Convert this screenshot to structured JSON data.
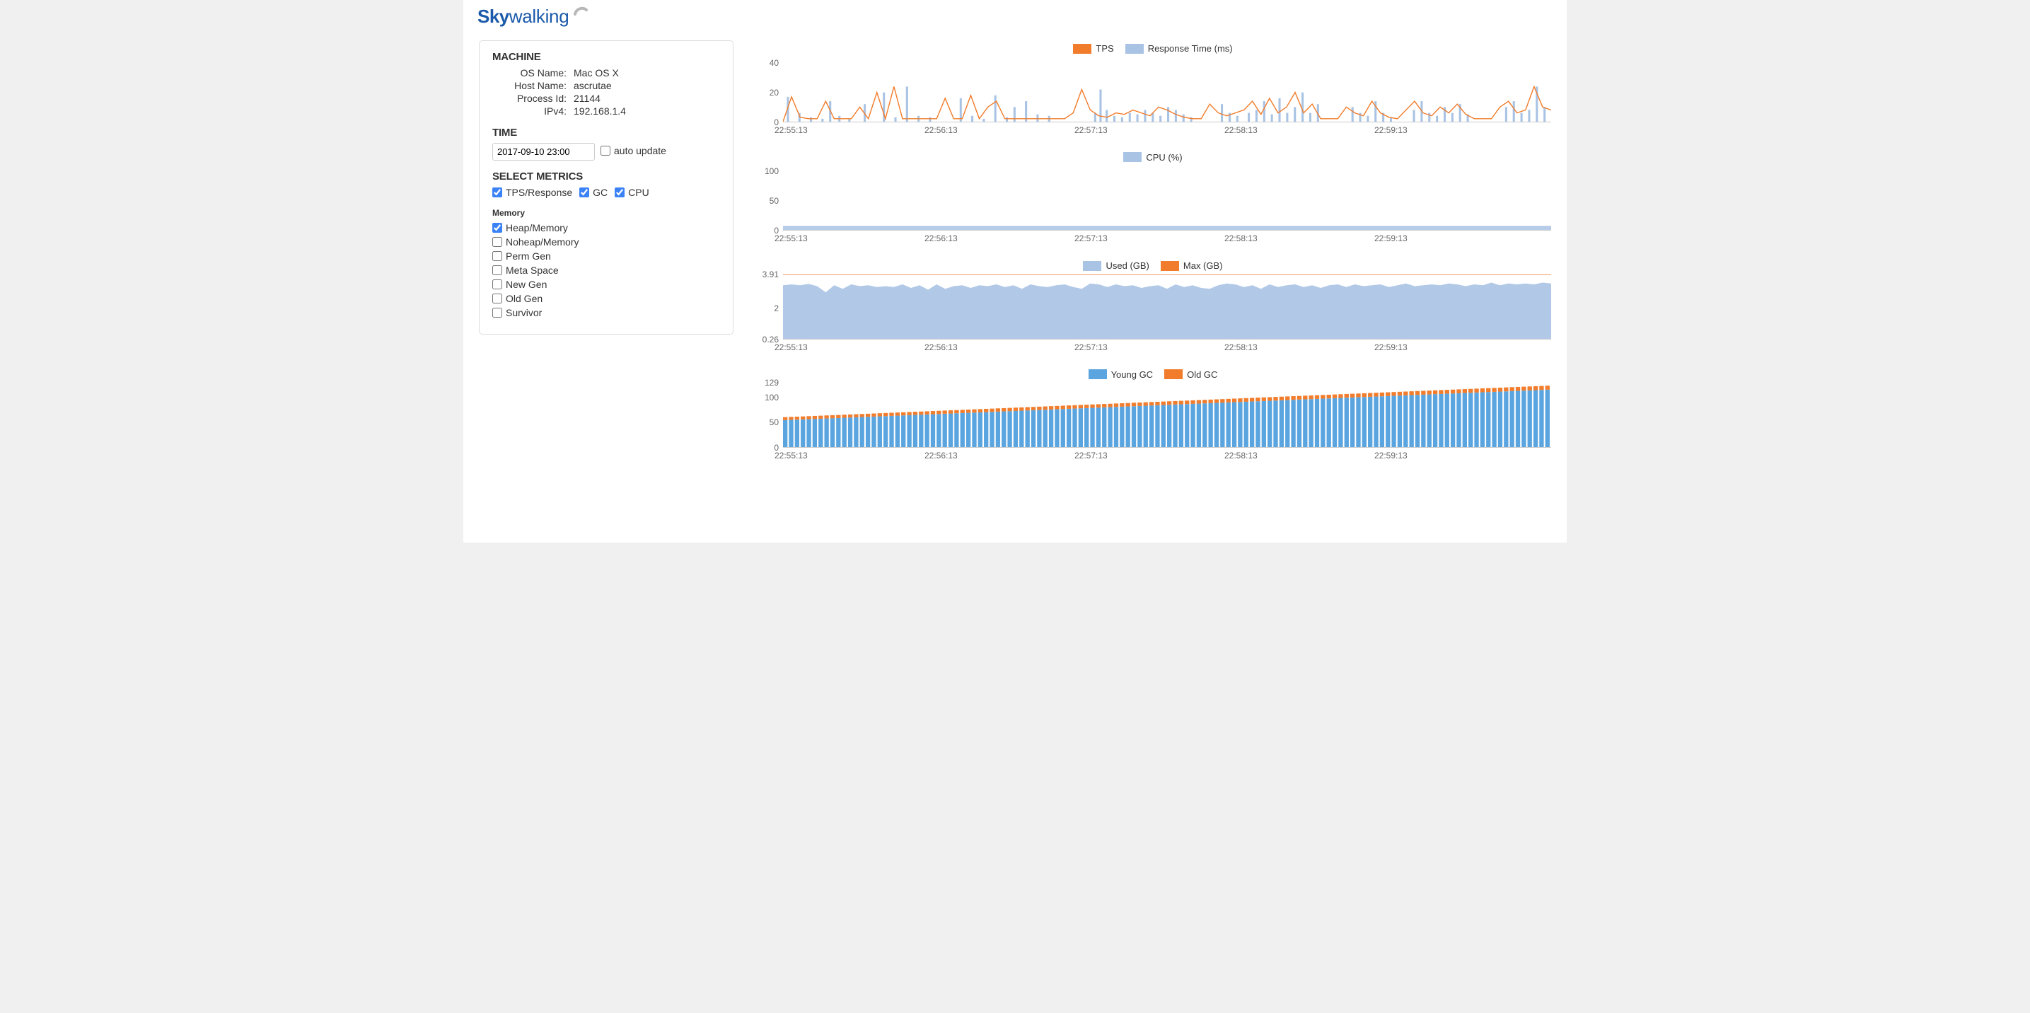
{
  "brand": {
    "part1": "Sky",
    "part2": "walking",
    "color": "#1b5aaa",
    "arc_color": "#b8b8b8"
  },
  "sidebar": {
    "machine": {
      "title": "MACHINE",
      "rows": [
        {
          "k": "OS Name:",
          "v": "Mac OS X"
        },
        {
          "k": "Host Name:",
          "v": "ascrutae"
        },
        {
          "k": "Process Id:",
          "v": "21144"
        },
        {
          "k": "IPv4:",
          "v": "192.168.1.4"
        }
      ]
    },
    "time": {
      "title": "TIME",
      "value": "2017-09-10 23:00",
      "auto_label": "auto update",
      "auto_checked": false
    },
    "metrics": {
      "title": "SELECT METRICS",
      "top": [
        {
          "label": "TPS/Response",
          "checked": true
        },
        {
          "label": "GC",
          "checked": true
        },
        {
          "label": "CPU",
          "checked": true
        }
      ],
      "memory_title": "Memory",
      "memory": [
        {
          "label": "Heap/Memory",
          "checked": true
        },
        {
          "label": "Noheap/Memory",
          "checked": false
        },
        {
          "label": "Perm Gen",
          "checked": false
        },
        {
          "label": "Meta Space",
          "checked": false
        },
        {
          "label": "New Gen",
          "checked": false
        },
        {
          "label": "Old Gen",
          "checked": false
        },
        {
          "label": "Survivor",
          "checked": false
        }
      ]
    }
  },
  "colors": {
    "orange": "#f17c2b",
    "lightblue": "#a9c3e4",
    "barblue": "#5aa5e0",
    "grid": "#cccccc",
    "text": "#666666"
  },
  "xticks": [
    "22:55:13",
    "22:56:13",
    "22:57:13",
    "22:58:13",
    "22:59:13"
  ],
  "chart_tps": {
    "type": "line+bar",
    "height": 92,
    "legend": [
      {
        "label": "TPS",
        "color": "#f17c2b"
      },
      {
        "label": "Response Time (ms)",
        "color": "#a9c3e4"
      }
    ],
    "ylim": [
      0,
      44
    ],
    "yticks": [
      0,
      20,
      40
    ],
    "bars": [
      {
        "x": 0.005,
        "v": 17
      },
      {
        "x": 0.02,
        "v": 6
      },
      {
        "x": 0.035,
        "v": 3
      },
      {
        "x": 0.05,
        "v": 2
      },
      {
        "x": 0.06,
        "v": 14
      },
      {
        "x": 0.072,
        "v": 4
      },
      {
        "x": 0.085,
        "v": 2
      },
      {
        "x": 0.105,
        "v": 12
      },
      {
        "x": 0.13,
        "v": 20
      },
      {
        "x": 0.145,
        "v": 3
      },
      {
        "x": 0.16,
        "v": 24
      },
      {
        "x": 0.175,
        "v": 4
      },
      {
        "x": 0.19,
        "v": 3
      },
      {
        "x": 0.23,
        "v": 16
      },
      {
        "x": 0.245,
        "v": 4
      },
      {
        "x": 0.26,
        "v": 2
      },
      {
        "x": 0.275,
        "v": 18
      },
      {
        "x": 0.29,
        "v": 3
      },
      {
        "x": 0.3,
        "v": 10
      },
      {
        "x": 0.315,
        "v": 14
      },
      {
        "x": 0.33,
        "v": 5
      },
      {
        "x": 0.345,
        "v": 4
      },
      {
        "x": 0.405,
        "v": 6
      },
      {
        "x": 0.412,
        "v": 22
      },
      {
        "x": 0.42,
        "v": 8
      },
      {
        "x": 0.43,
        "v": 4
      },
      {
        "x": 0.44,
        "v": 3
      },
      {
        "x": 0.45,
        "v": 6
      },
      {
        "x": 0.46,
        "v": 5
      },
      {
        "x": 0.47,
        "v": 8
      },
      {
        "x": 0.48,
        "v": 6
      },
      {
        "x": 0.49,
        "v": 4
      },
      {
        "x": 0.5,
        "v": 10
      },
      {
        "x": 0.51,
        "v": 8
      },
      {
        "x": 0.52,
        "v": 5
      },
      {
        "x": 0.53,
        "v": 3
      },
      {
        "x": 0.57,
        "v": 12
      },
      {
        "x": 0.58,
        "v": 6
      },
      {
        "x": 0.59,
        "v": 4
      },
      {
        "x": 0.605,
        "v": 6
      },
      {
        "x": 0.615,
        "v": 8
      },
      {
        "x": 0.625,
        "v": 14
      },
      {
        "x": 0.635,
        "v": 5
      },
      {
        "x": 0.645,
        "v": 16
      },
      {
        "x": 0.655,
        "v": 6
      },
      {
        "x": 0.665,
        "v": 10
      },
      {
        "x": 0.675,
        "v": 20
      },
      {
        "x": 0.685,
        "v": 6
      },
      {
        "x": 0.695,
        "v": 12
      },
      {
        "x": 0.74,
        "v": 10
      },
      {
        "x": 0.75,
        "v": 6
      },
      {
        "x": 0.76,
        "v": 4
      },
      {
        "x": 0.77,
        "v": 14
      },
      {
        "x": 0.78,
        "v": 6
      },
      {
        "x": 0.79,
        "v": 3
      },
      {
        "x": 0.82,
        "v": 8
      },
      {
        "x": 0.83,
        "v": 14
      },
      {
        "x": 0.84,
        "v": 6
      },
      {
        "x": 0.85,
        "v": 4
      },
      {
        "x": 0.86,
        "v": 10
      },
      {
        "x": 0.87,
        "v": 6
      },
      {
        "x": 0.88,
        "v": 12
      },
      {
        "x": 0.89,
        "v": 5
      },
      {
        "x": 0.94,
        "v": 10
      },
      {
        "x": 0.95,
        "v": 14
      },
      {
        "x": 0.96,
        "v": 6
      },
      {
        "x": 0.97,
        "v": 8
      },
      {
        "x": 0.98,
        "v": 24
      },
      {
        "x": 0.99,
        "v": 10
      }
    ],
    "line": [
      0,
      17,
      3,
      2,
      2,
      14,
      2,
      2,
      2,
      10,
      2,
      20,
      2,
      24,
      2,
      2,
      2,
      2,
      2,
      16,
      2,
      2,
      18,
      2,
      10,
      14,
      2,
      2,
      2,
      2,
      2,
      2,
      2,
      2,
      6,
      22,
      8,
      4,
      3,
      6,
      5,
      8,
      6,
      4,
      10,
      8,
      5,
      3,
      2,
      2,
      12,
      6,
      4,
      6,
      8,
      14,
      5,
      16,
      6,
      10,
      20,
      6,
      12,
      2,
      2,
      2,
      10,
      6,
      4,
      14,
      6,
      3,
      2,
      8,
      14,
      6,
      4,
      10,
      6,
      12,
      5,
      2,
      2,
      2,
      10,
      14,
      6,
      8,
      24,
      10,
      8
    ]
  },
  "chart_cpu": {
    "type": "area",
    "height": 92,
    "legend": [
      {
        "label": "CPU (%)",
        "color": "#a9c3e4"
      }
    ],
    "ylim": [
      0,
      110
    ],
    "yticks": [
      0,
      50,
      100
    ],
    "value": 6
  },
  "chart_mem": {
    "type": "area+line",
    "height": 92,
    "legend": [
      {
        "label": "Used (GB)",
        "color": "#a9c3e4"
      },
      {
        "label": "Max (GB)",
        "color": "#f17c2b"
      }
    ],
    "ylim": [
      0.26,
      3.91
    ],
    "yticks": [
      0.26,
      2,
      3.91
    ],
    "max": 3.91,
    "used": [
      3.3,
      3.35,
      3.3,
      3.38,
      3.25,
      2.9,
      3.3,
      3.1,
      3.35,
      3.25,
      3.3,
      3.2,
      3.25,
      3.2,
      3.35,
      3.15,
      3.3,
      3.05,
      3.35,
      3.1,
      3.25,
      3.3,
      3.15,
      3.3,
      3.25,
      3.35,
      3.2,
      3.3,
      3.1,
      3.35,
      3.25,
      3.2,
      3.3,
      3.35,
      3.2,
      3.1,
      3.4,
      3.35,
      3.2,
      3.35,
      3.25,
      3.3,
      3.15,
      3.25,
      3.3,
      3.1,
      3.35,
      3.2,
      3.3,
      3.15,
      3.1,
      3.3,
      3.4,
      3.35,
      3.2,
      3.3,
      3.1,
      3.35,
      3.2,
      3.3,
      3.35,
      3.2,
      3.3,
      3.15,
      3.3,
      3.35,
      3.2,
      3.35,
      3.25,
      3.3,
      3.35,
      3.2,
      3.3,
      3.4,
      3.25,
      3.3,
      3.35,
      3.3,
      3.4,
      3.35,
      3.25,
      3.35,
      3.3,
      3.45,
      3.3,
      3.4,
      3.35,
      3.4,
      3.35,
      3.45,
      3.4
    ]
  },
  "chart_gc": {
    "type": "stacked-bar",
    "height": 92,
    "legend": [
      {
        "label": "Young GC",
        "color": "#5aa5e0"
      },
      {
        "label": "Old GC",
        "color": "#f17c2b"
      }
    ],
    "ylim": [
      0,
      129
    ],
    "yticks": [
      0,
      50,
      100,
      129
    ],
    "n": 130,
    "young_start": 54,
    "young_end": 115,
    "old_start": 6,
    "old_end": 8
  }
}
